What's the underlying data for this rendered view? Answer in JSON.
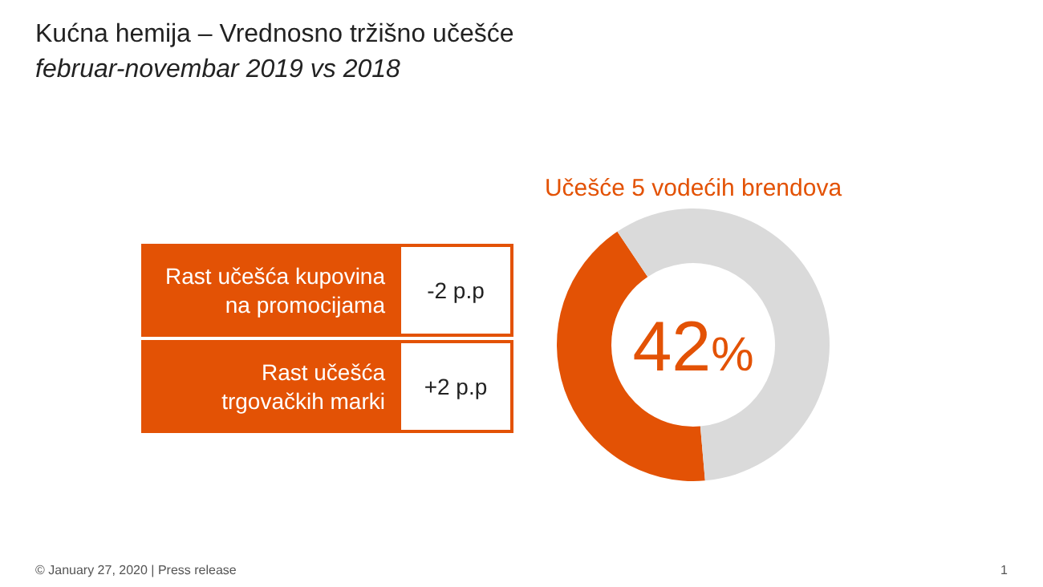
{
  "chart_data": [
    {
      "type": "other",
      "title": "Kućna hemija – Vrednosno tržišno učešće",
      "subtitle": "februar-novembar 2019 vs 2018",
      "annotations": [
        "Rast učešća kupovina\nna promocijama",
        "-2 p.p",
        "Rast učešća\ntrgovačkih marki",
        "+2 p.p",
        "© January 27, 2020 | Press release",
        "1"
      ]
    },
    {
      "type": "donut",
      "title": "Učešće 5 vodećih brendova",
      "categories": [
        null,
        null
      ],
      "values": [
        42,
        58
      ],
      "colors": [
        "#e35205",
        "#dadada"
      ],
      "value_labels": [
        "42%",
        null
      ]
    }
  ]
}
